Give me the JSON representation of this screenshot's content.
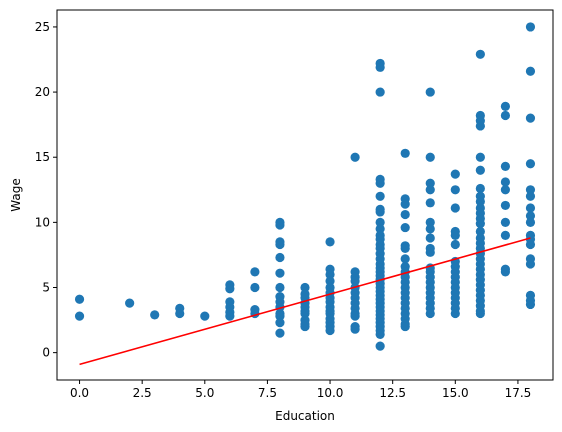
{
  "chart_data": {
    "type": "scatter",
    "title": "",
    "xlabel": "Education",
    "ylabel": "Wage",
    "xlim": [
      -0.9,
      18.9
    ],
    "ylim": [
      -2.1,
      26.3
    ],
    "x_ticks": [
      0.0,
      2.5,
      5.0,
      7.5,
      10.0,
      12.5,
      15.0,
      17.5
    ],
    "x_tick_labels": [
      "0.0",
      "2.5",
      "5.0",
      "7.5",
      "10.0",
      "12.5",
      "15.0",
      "17.5"
    ],
    "y_ticks": [
      0,
      5,
      10,
      15,
      20,
      25
    ],
    "y_tick_labels": [
      "0",
      "5",
      "10",
      "15",
      "20",
      "25"
    ],
    "grid": false,
    "colors": {
      "points": "#1f77b4",
      "fit_line": "#ff0000",
      "axes": "#000000"
    },
    "series": [
      {
        "type": "scatter",
        "points": [
          [
            0,
            4.1
          ],
          [
            0,
            2.8
          ],
          [
            2,
            3.8
          ],
          [
            3,
            2.9
          ],
          [
            4,
            3.4
          ],
          [
            4,
            3.0
          ],
          [
            5,
            2.8
          ],
          [
            6,
            5.2
          ],
          [
            6,
            4.9
          ],
          [
            6,
            3.9
          ],
          [
            6,
            3.5
          ],
          [
            6,
            3.1
          ],
          [
            6,
            2.8
          ],
          [
            7,
            6.2
          ],
          [
            7,
            5.0
          ],
          [
            7,
            3.3
          ],
          [
            7,
            3.0
          ],
          [
            8,
            10.0
          ],
          [
            8,
            9.8
          ],
          [
            8,
            8.5
          ],
          [
            8,
            8.3
          ],
          [
            8,
            7.3
          ],
          [
            8,
            6.1
          ],
          [
            8,
            5.0
          ],
          [
            8,
            4.3
          ],
          [
            8,
            3.9
          ],
          [
            8,
            3.5
          ],
          [
            8,
            3.0
          ],
          [
            8,
            2.8
          ],
          [
            8,
            2.3
          ],
          [
            8,
            1.5
          ],
          [
            9,
            5.0
          ],
          [
            9,
            4.5
          ],
          [
            9,
            4.2
          ],
          [
            9,
            3.8
          ],
          [
            9,
            3.5
          ],
          [
            9,
            3.2
          ],
          [
            9,
            3.0
          ],
          [
            9,
            2.5
          ],
          [
            9,
            2.2
          ],
          [
            9,
            2.0
          ],
          [
            10,
            8.5
          ],
          [
            10,
            6.4
          ],
          [
            10,
            6.0
          ],
          [
            10,
            5.5
          ],
          [
            10,
            5.0
          ],
          [
            10,
            4.6
          ],
          [
            10,
            4.2
          ],
          [
            10,
            3.9
          ],
          [
            10,
            3.5
          ],
          [
            10,
            3.2
          ],
          [
            10,
            3.0
          ],
          [
            10,
            2.6
          ],
          [
            10,
            2.3
          ],
          [
            10,
            2.0
          ],
          [
            10,
            1.7
          ],
          [
            11,
            15.0
          ],
          [
            11,
            6.2
          ],
          [
            11,
            5.8
          ],
          [
            11,
            5.5
          ],
          [
            11,
            5.0
          ],
          [
            11,
            4.6
          ],
          [
            11,
            4.2
          ],
          [
            11,
            3.8
          ],
          [
            11,
            3.4
          ],
          [
            11,
            3.0
          ],
          [
            11,
            2.8
          ],
          [
            11,
            2.0
          ],
          [
            11,
            1.8
          ],
          [
            12,
            22.2
          ],
          [
            12,
            21.9
          ],
          [
            12,
            20.0
          ],
          [
            12,
            13.3
          ],
          [
            12,
            13.0
          ],
          [
            12,
            12.0
          ],
          [
            12,
            11.0
          ],
          [
            12,
            10.8
          ],
          [
            12,
            10.0
          ],
          [
            12,
            9.5
          ],
          [
            12,
            9.0
          ],
          [
            12,
            8.7
          ],
          [
            12,
            8.3
          ],
          [
            12,
            8.0
          ],
          [
            12,
            7.6
          ],
          [
            12,
            7.2
          ],
          [
            12,
            6.8
          ],
          [
            12,
            6.5
          ],
          [
            12,
            6.2
          ],
          [
            12,
            5.9
          ],
          [
            12,
            5.6
          ],
          [
            12,
            5.3
          ],
          [
            12,
            5.0
          ],
          [
            12,
            4.7
          ],
          [
            12,
            4.4
          ],
          [
            12,
            4.1
          ],
          [
            12,
            3.8
          ],
          [
            12,
            3.5
          ],
          [
            12,
            3.2
          ],
          [
            12,
            2.9
          ],
          [
            12,
            2.6
          ],
          [
            12,
            2.3
          ],
          [
            12,
            2.0
          ],
          [
            12,
            1.7
          ],
          [
            12,
            1.4
          ],
          [
            12,
            0.5
          ],
          [
            13,
            15.3
          ],
          [
            13,
            11.8
          ],
          [
            13,
            11.4
          ],
          [
            13,
            10.6
          ],
          [
            13,
            9.6
          ],
          [
            13,
            8.2
          ],
          [
            13,
            8.0
          ],
          [
            13,
            7.2
          ],
          [
            13,
            6.6
          ],
          [
            13,
            6.2
          ],
          [
            13,
            5.8
          ],
          [
            13,
            5.4
          ],
          [
            13,
            5.0
          ],
          [
            13,
            4.6
          ],
          [
            13,
            4.2
          ],
          [
            13,
            3.8
          ],
          [
            13,
            3.4
          ],
          [
            13,
            3.0
          ],
          [
            13,
            2.6
          ],
          [
            13,
            2.2
          ],
          [
            13,
            2.0
          ],
          [
            14,
            20.0
          ],
          [
            14,
            15.0
          ],
          [
            14,
            13.0
          ],
          [
            14,
            12.5
          ],
          [
            14,
            11.5
          ],
          [
            14,
            10.0
          ],
          [
            14,
            9.5
          ],
          [
            14,
            8.8
          ],
          [
            14,
            8.0
          ],
          [
            14,
            7.7
          ],
          [
            14,
            6.5
          ],
          [
            14,
            6.2
          ],
          [
            14,
            5.8
          ],
          [
            14,
            5.4
          ],
          [
            14,
            5.0
          ],
          [
            14,
            4.6
          ],
          [
            14,
            4.2
          ],
          [
            14,
            3.8
          ],
          [
            14,
            3.4
          ],
          [
            14,
            3.0
          ],
          [
            15,
            13.7
          ],
          [
            15,
            12.5
          ],
          [
            15,
            11.1
          ],
          [
            15,
            9.3
          ],
          [
            15,
            9.0
          ],
          [
            15,
            8.3
          ],
          [
            15,
            7.0
          ],
          [
            15,
            6.6
          ],
          [
            15,
            6.2
          ],
          [
            15,
            5.8
          ],
          [
            15,
            5.4
          ],
          [
            15,
            5.0
          ],
          [
            15,
            4.6
          ],
          [
            15,
            4.2
          ],
          [
            15,
            3.8
          ],
          [
            15,
            3.4
          ],
          [
            15,
            3.0
          ],
          [
            16,
            22.9
          ],
          [
            16,
            18.2
          ],
          [
            16,
            17.8
          ],
          [
            16,
            17.4
          ],
          [
            16,
            15.0
          ],
          [
            16,
            14.0
          ],
          [
            16,
            12.6
          ],
          [
            16,
            12.0
          ],
          [
            16,
            11.6
          ],
          [
            16,
            11.1
          ],
          [
            16,
            10.7
          ],
          [
            16,
            10.3
          ],
          [
            16,
            9.9
          ],
          [
            16,
            9.3
          ],
          [
            16,
            8.8
          ],
          [
            16,
            8.4
          ],
          [
            16,
            8.0
          ],
          [
            16,
            7.6
          ],
          [
            16,
            7.2
          ],
          [
            16,
            6.8
          ],
          [
            16,
            6.4
          ],
          [
            16,
            6.0
          ],
          [
            16,
            5.6
          ],
          [
            16,
            5.2
          ],
          [
            16,
            4.8
          ],
          [
            16,
            4.4
          ],
          [
            16,
            4.0
          ],
          [
            16,
            3.6
          ],
          [
            16,
            3.2
          ],
          [
            16,
            3.0
          ],
          [
            17,
            18.9
          ],
          [
            17,
            18.2
          ],
          [
            17,
            14.3
          ],
          [
            17,
            13.1
          ],
          [
            17,
            12.5
          ],
          [
            17,
            11.3
          ],
          [
            17,
            10.0
          ],
          [
            17,
            9.0
          ],
          [
            17,
            6.4
          ],
          [
            17,
            6.2
          ],
          [
            18,
            25.0
          ],
          [
            18,
            21.6
          ],
          [
            18,
            18.0
          ],
          [
            18,
            14.5
          ],
          [
            18,
            12.5
          ],
          [
            18,
            12.0
          ],
          [
            18,
            11.1
          ],
          [
            18,
            10.5
          ],
          [
            18,
            10.0
          ],
          [
            18,
            9.0
          ],
          [
            18,
            8.7
          ],
          [
            18,
            8.3
          ],
          [
            18,
            7.2
          ],
          [
            18,
            6.8
          ],
          [
            18,
            4.4
          ],
          [
            18,
            4.0
          ],
          [
            18,
            3.7
          ]
        ]
      },
      {
        "type": "line",
        "points": [
          [
            0,
            -0.9
          ],
          [
            18,
            8.8
          ]
        ]
      }
    ]
  }
}
